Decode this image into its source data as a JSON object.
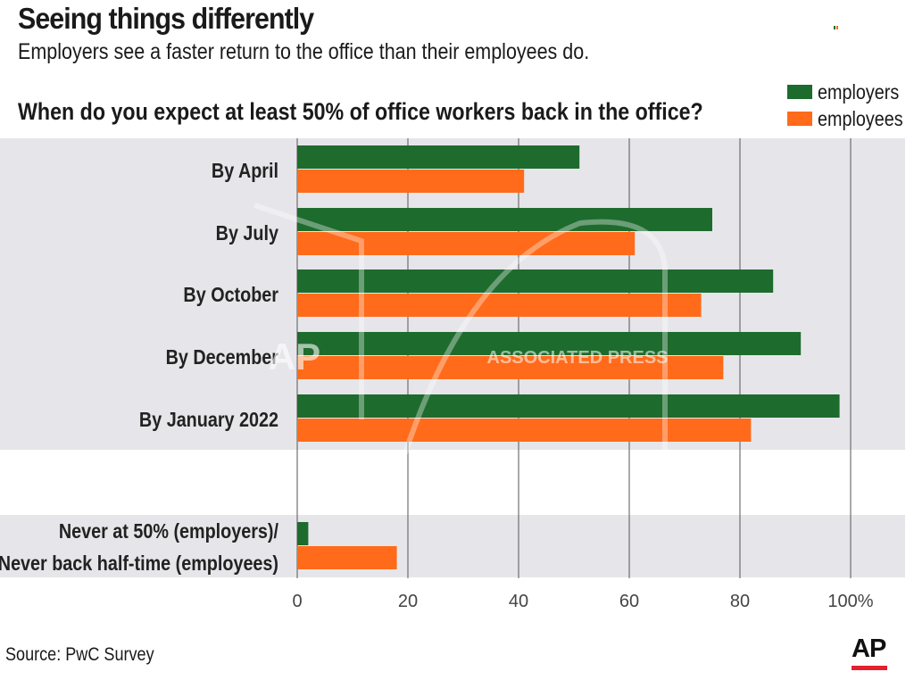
{
  "header": {
    "title": "Seeing things differently",
    "subtitle": "Employers see a faster return to the office than their employees do.",
    "question": "When do you expect at least 50% of office workers back in the office?"
  },
  "legend": [
    {
      "label": "employers",
      "color": "#1e6b2e"
    },
    {
      "label": "employees",
      "color": "#ff6b1a"
    }
  ],
  "footer": {
    "source": "Source: PwC Survey",
    "logo": "AP"
  },
  "watermark": {
    "text": "ASSOCIATED PRESS",
    "mark": "AP"
  },
  "colors": {
    "band": "#e6e6ea",
    "grid": "#555555",
    "employers": "#1e6b2e",
    "employees": "#ff6b1a"
  },
  "chart_data": {
    "type": "bar",
    "orientation": "horizontal",
    "title": "When do you expect at least 50% of office workers back in the office?",
    "xlabel": "",
    "ylabel": "",
    "xlim": [
      0,
      100
    ],
    "ticks": [
      "0",
      "20",
      "40",
      "60",
      "80",
      "100%"
    ],
    "tick_values": [
      0,
      20,
      40,
      60,
      80,
      100
    ],
    "categories": [
      [
        "By April"
      ],
      [
        "By July"
      ],
      [
        "By October"
      ],
      [
        "By December"
      ],
      [
        "By January 2022"
      ],
      [
        "Never at 50% (employers)/",
        "Never back half-time (employees)"
      ]
    ],
    "series": [
      {
        "name": "employers",
        "values": [
          51,
          75,
          86,
          91,
          98,
          2
        ]
      },
      {
        "name": "employees",
        "values": [
          41,
          61,
          73,
          77,
          82,
          18
        ]
      }
    ],
    "legend_position": "top-right"
  }
}
